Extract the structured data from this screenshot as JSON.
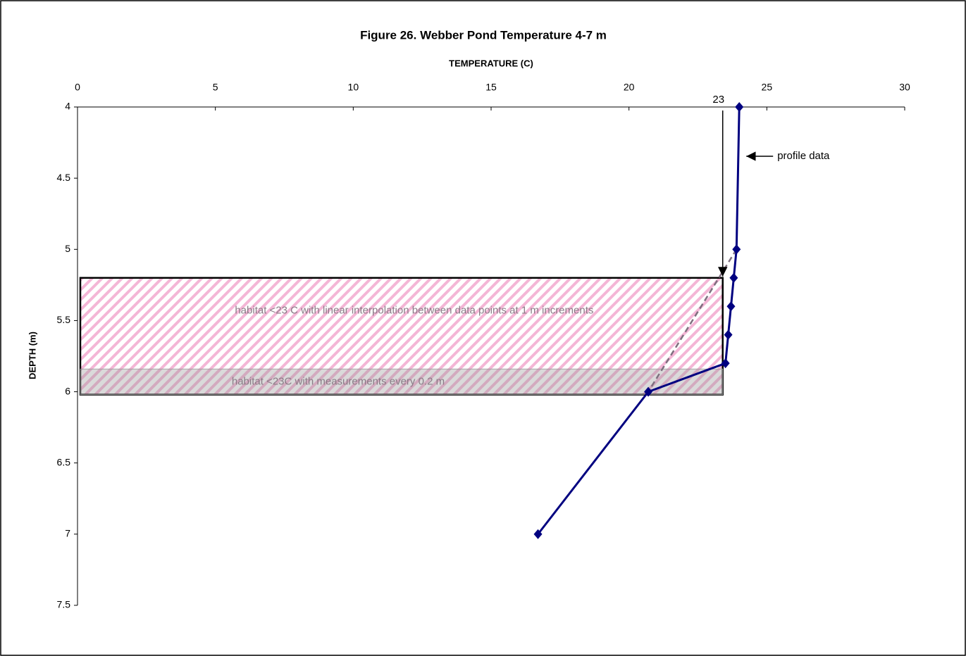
{
  "chart_data": {
    "type": "line",
    "title": "Figure 26. Webber Pond Temperature 4-7 m",
    "x_label": "TEMPERATURE (C)",
    "y_label": "DEPTH (m)",
    "xlim": [
      0,
      30
    ],
    "xticks": [
      0,
      5,
      10,
      15,
      20,
      25,
      30
    ],
    "ylim": [
      4,
      7.5
    ],
    "yticks": [
      4,
      4.5,
      5,
      5.5,
      6,
      6.5,
      7,
      7.5
    ],
    "y_inverted": true,
    "series": [
      {
        "name": "profile data",
        "color": "#000080",
        "x": [
          24.0,
          23.9,
          23.8,
          23.7,
          23.6,
          23.5,
          20.7,
          16.7
        ],
        "y": [
          4,
          5,
          5.2,
          5.4,
          5.6,
          5.8,
          6,
          7
        ]
      }
    ],
    "interpolation": {
      "color": "#7f6f7f",
      "x": [
        23.9,
        20.7
      ],
      "y": [
        5,
        6
      ]
    },
    "regions": [
      {
        "label": "habitat <23 C with linear interpolation between data points at 1 m increments",
        "x": [
          0,
          23.4
        ],
        "y": [
          5.2,
          6.02
        ]
      },
      {
        "label": "habitat <23C with measurements every 0.2 m",
        "x": [
          0,
          23.4
        ],
        "y": [
          5.84,
          6.02
        ]
      }
    ],
    "threshold": {
      "label": "23",
      "x": 23.4,
      "y": 5.2
    }
  }
}
